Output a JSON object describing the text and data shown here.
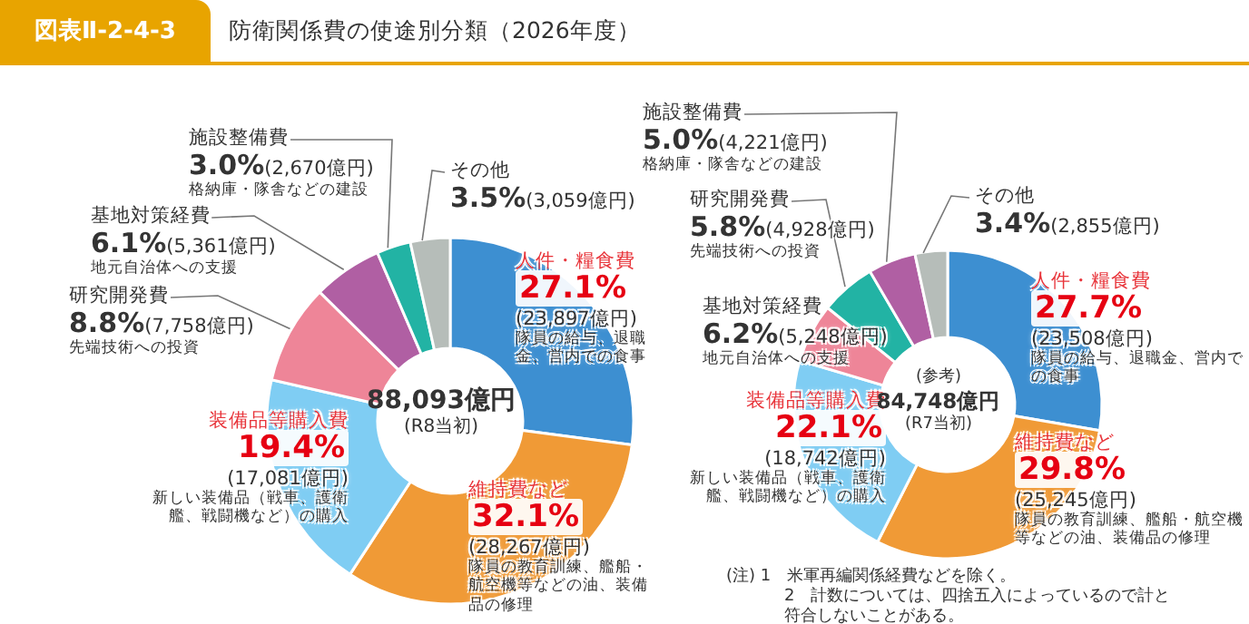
{
  "chart_data": [
    {
      "type": "donut",
      "title": "防衛関係費の使途別分類（2026年度）",
      "categories": [
        "人件・糧食費",
        "維持費など",
        "装備品等購入費",
        "研究開発費",
        "基地対策経費",
        "施設整備費",
        "その他"
      ],
      "values": [
        27.1,
        32.1,
        19.4,
        8.8,
        6.1,
        3.0,
        3.5
      ],
      "colors": [
        "#3d8fd1",
        "#f09a36",
        "#7fcdf3",
        "#ee8598",
        "#b05fa3",
        "#22b3a4",
        "#b6bdb9"
      ],
      "value_labels": [
        "27.1%",
        "32.1%",
        "19.4%",
        "8.8%",
        "6.1%",
        "3.0%",
        "3.5%"
      ],
      "annotations": [
        "(23,897億円)",
        "(28,267億円)",
        "(17,081億円)",
        "(7,758億円)",
        "(5,361億円)",
        "(2,670億円)",
        "(3,059億円)",
        "隊員の給与、退職金、営内での食事",
        "隊員の教育訓練、艦船・航空機等などの油、装備品の修理",
        "新しい装備品（戦車、護衛艦、戦闘機など）の購入",
        "先端技術への投資",
        "地元自治体への支援",
        "格納庫・隊舎などの建設",
        "88,093億円",
        "(R8当初)",
        "図表Ⅱ-2-4-3"
      ]
    },
    {
      "type": "donut",
      "categories": [
        "人件・糧食費",
        "維持費など",
        "装備品等購入費",
        "基地対策経費",
        "研究開発費",
        "施設整備費",
        "その他"
      ],
      "values": [
        27.7,
        29.8,
        22.1,
        6.2,
        5.8,
        5.0,
        3.4
      ],
      "colors": [
        "#3d8fd1",
        "#f09a36",
        "#7fcdf3",
        "#ee8598",
        "#22b3a4",
        "#b05fa3",
        "#b6bdb9"
      ],
      "value_labels": [
        "27.7%",
        "29.8%",
        "22.1%",
        "6.2%",
        "5.8%",
        "5.0%",
        "3.4%"
      ],
      "annotations": [
        "(23,508億円)",
        "(25,245億円)",
        "(18,742億円)",
        "(5,248億円)",
        "(4,928億円)",
        "(4,221億円)",
        "(2,855億円)",
        "隊員の給与、退職金、営内での食事",
        "隊員の教育訓練、艦船・航空機等などの油、装備品の修理",
        "新しい装備品（戦車、護衛艦、戦闘機など）の購入",
        "地元自治体への支援",
        "先端技術への投資",
        "格納庫・隊舎などの建設",
        "(参考)",
        "84,748億円",
        "(R7当初)",
        "(注) 1　米軍再編関係経費などを除く。",
        "2　計数については、四捨五入によっているので計と符合しないことがある。"
      ]
    }
  ]
}
